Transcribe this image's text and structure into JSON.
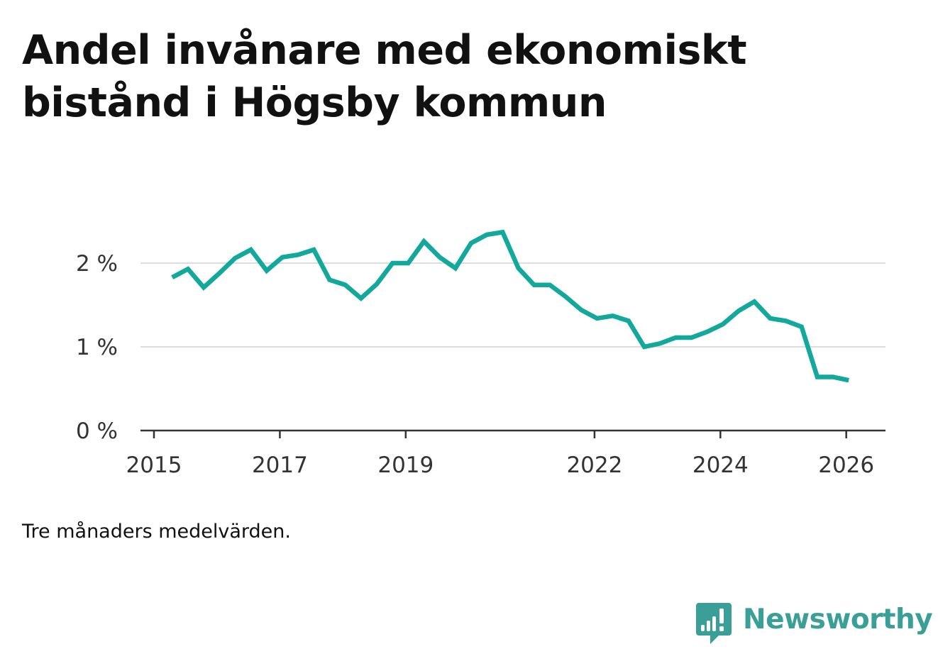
{
  "title": "Andel invånare med ekonomiskt bistånd i Högsby kommun",
  "caption": "Tre månaders medelvärden.",
  "brand": {
    "name": "Newsworthy",
    "logo_icon": "bar-chart-speech-bubble-icon",
    "color": "#3a9f96"
  },
  "colors": {
    "line": "#12a89c",
    "grid": "#dddddd",
    "axis": "#333333"
  },
  "chart_data": {
    "type": "line",
    "title": "Andel invånare med ekonomiskt bistånd i Högsby kommun",
    "xlabel": "",
    "ylabel": "",
    "grid": true,
    "xlim": [
      2015,
      2026.5
    ],
    "ylim": [
      0,
      2.6
    ],
    "x_ticks": [
      2015,
      2017,
      2019,
      2022,
      2024,
      2026
    ],
    "y_ticks": [
      {
        "value": 0,
        "label": "0 %"
      },
      {
        "value": 1,
        "label": "1 %"
      },
      {
        "value": 2,
        "label": "2 %"
      }
    ],
    "series": [
      {
        "name": "Andel invånare med ekonomiskt bistånd",
        "x": [
          2015.29,
          2015.54,
          2015.79,
          2016.04,
          2016.29,
          2016.54,
          2016.79,
          2017.04,
          2017.29,
          2017.54,
          2017.79,
          2018.04,
          2018.29,
          2018.54,
          2018.79,
          2019.04,
          2019.29,
          2019.54,
          2019.79,
          2020.04,
          2020.29,
          2020.54,
          2020.79,
          2021.04,
          2021.29,
          2021.54,
          2021.79,
          2022.04,
          2022.29,
          2022.54,
          2022.79,
          2023.04,
          2023.29,
          2023.54,
          2023.79,
          2024.04,
          2024.29,
          2024.54,
          2024.79,
          2025.04,
          2025.29,
          2025.54,
          2025.79,
          2026.04
        ],
        "values": [
          1.83,
          1.93,
          1.71,
          1.88,
          2.06,
          2.16,
          1.91,
          2.07,
          2.1,
          2.16,
          1.8,
          1.74,
          1.58,
          1.75,
          2.0,
          2.0,
          2.26,
          2.07,
          1.94,
          2.24,
          2.34,
          2.37,
          1.94,
          1.74,
          1.74,
          1.6,
          1.44,
          1.34,
          1.37,
          1.31,
          1.0,
          1.04,
          1.11,
          1.11,
          1.18,
          1.27,
          1.43,
          1.54,
          1.34,
          1.31,
          1.24,
          0.64,
          0.64,
          0.6
        ]
      }
    ]
  }
}
